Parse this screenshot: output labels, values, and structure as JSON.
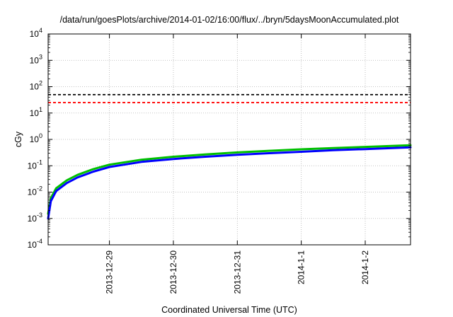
{
  "chart_data": {
    "type": "line",
    "title": "/data/run/goesPlots/archive/2014-01-02/16:00/flux/../bryn/5daysMoonAccumulated.plot",
    "xlabel": "Coordinated Universal Time (UTC)",
    "ylabel": "cGy",
    "yscale": "log",
    "ylim": [
      0.0001,
      10000
    ],
    "xlim": [
      "2013-12-28 01:00",
      "2014-01-02 17:00"
    ],
    "x_ticks": [
      {
        "date": "2013-12-29 00:00",
        "label": "2013-12-29"
      },
      {
        "date": "2013-12-30 00:00",
        "label": "2013-12-30"
      },
      {
        "date": "2013-12-31 00:00",
        "label": "2013-12-31"
      },
      {
        "date": "2014-01-01 00:00",
        "label": "2014-1-1"
      },
      {
        "date": "2014-01-02 00:00",
        "label": "2014-1-2"
      }
    ],
    "y_ticks": [
      {
        "value": 0.0001,
        "base": "10",
        "exp": "-4"
      },
      {
        "value": 0.001,
        "base": "10",
        "exp": "-3"
      },
      {
        "value": 0.01,
        "base": "10",
        "exp": "-2"
      },
      {
        "value": 0.1,
        "base": "10",
        "exp": "-1"
      },
      {
        "value": 1,
        "base": "10",
        "exp": "0"
      },
      {
        "value": 10,
        "base": "10",
        "exp": "1"
      },
      {
        "value": 100,
        "base": "10",
        "exp": "2"
      },
      {
        "value": 1000,
        "base": "10",
        "exp": "3"
      },
      {
        "value": 10000,
        "base": "10",
        "exp": "4"
      }
    ],
    "grid": true,
    "thresholds": [
      {
        "value": 50,
        "color": "#000000",
        "style": "dashed"
      },
      {
        "value": 25,
        "color": "#ff0000",
        "style": "dashed"
      }
    ],
    "series": [
      {
        "color": "#00c000",
        "x": [
          "2013-12-28 01:00",
          "2013-12-28 02:00",
          "2013-12-28 04:00",
          "2013-12-28 08:00",
          "2013-12-28 12:00",
          "2013-12-28 18:00",
          "2013-12-29 00:00",
          "2013-12-29 12:00",
          "2013-12-30 00:00",
          "2013-12-30 12:00",
          "2013-12-31 00:00",
          "2013-12-31 12:00",
          "2014-01-01 00:00",
          "2014-01-01 12:00",
          "2014-01-02 00:00",
          "2014-01-02 17:00"
        ],
        "y": [
          0.0015,
          0.006,
          0.014,
          0.028,
          0.045,
          0.075,
          0.11,
          0.17,
          0.22,
          0.27,
          0.32,
          0.37,
          0.42,
          0.47,
          0.52,
          0.6
        ]
      },
      {
        "color": "#0000ff",
        "x": [
          "2013-12-28 01:00",
          "2013-12-28 02:00",
          "2013-12-28 04:00",
          "2013-12-28 08:00",
          "2013-12-28 12:00",
          "2013-12-28 18:00",
          "2013-12-29 00:00",
          "2013-12-29 12:00",
          "2013-12-30 00:00",
          "2013-12-30 12:00",
          "2013-12-31 00:00",
          "2013-12-31 12:00",
          "2014-01-01 00:00",
          "2014-01-01 12:00",
          "2014-01-02 00:00",
          "2014-01-02 17:00"
        ],
        "y": [
          0.001,
          0.0045,
          0.011,
          0.022,
          0.036,
          0.06,
          0.09,
          0.14,
          0.18,
          0.22,
          0.26,
          0.3,
          0.34,
          0.39,
          0.43,
          0.5
        ]
      }
    ]
  }
}
